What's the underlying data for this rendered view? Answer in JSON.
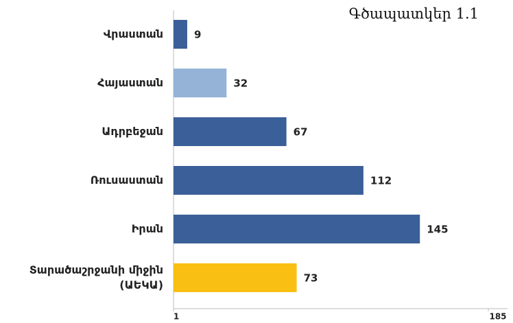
{
  "chart_data": {
    "type": "bar",
    "orientation": "horizontal",
    "title": "Գծապատկեր 1.1",
    "categories": [
      "Վրաստան",
      "Հայաստան",
      "Ադրբեջան",
      "Ռուսաստան",
      "Իրան",
      "Տարածաշրջանի միջին (ԱԵԿԱ)"
    ],
    "values": [
      9,
      32,
      67,
      112,
      145,
      73
    ],
    "colors": [
      "#3b5f98",
      "#95b3d7",
      "#3b5f98",
      "#3b5f98",
      "#3b5f98",
      "#f9c013"
    ],
    "xlim": [
      1,
      185
    ],
    "xticks": [
      1,
      185
    ]
  }
}
